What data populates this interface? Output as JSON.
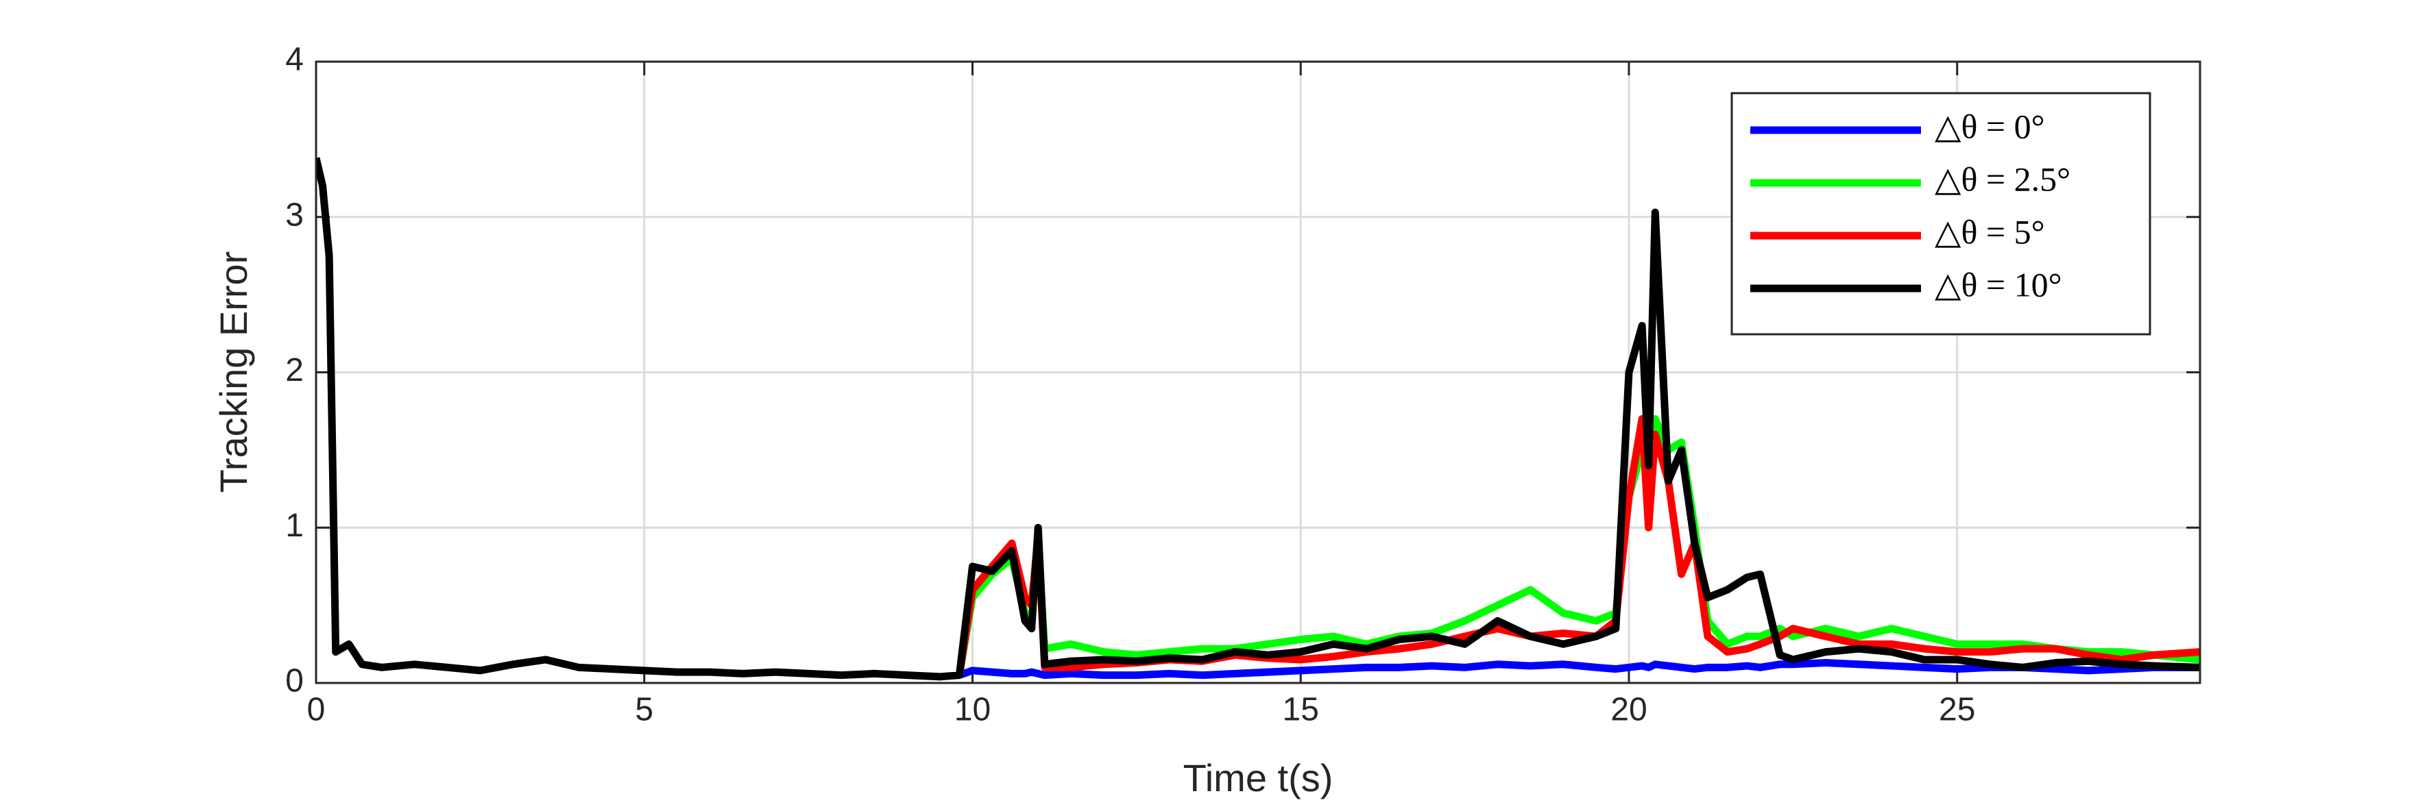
{
  "chart_data": {
    "type": "line",
    "x_label": "Time t(s)",
    "y_label": "Tracking Error",
    "x": [
      0,
      0.1,
      0.2,
      0.3,
      0.5,
      0.7,
      1,
      1.5,
      2,
      2.5,
      3,
      3.5,
      4,
      4.5,
      5,
      5.5,
      6,
      6.5,
      7,
      7.5,
      8,
      8.5,
      9,
      9.5,
      9.8,
      10,
      10.3,
      10.6,
      10.8,
      10.9,
      11,
      11.1,
      11.5,
      12,
      12.5,
      13,
      13.5,
      14,
      14.5,
      15,
      15.5,
      16,
      16.5,
      17,
      17.5,
      18,
      18.5,
      19,
      19.5,
      19.8,
      20,
      20.2,
      20.3,
      20.4,
      20.6,
      20.8,
      21,
      21.2,
      21.5,
      21.8,
      22,
      22.3,
      22.5,
      23,
      23.5,
      24,
      24.5,
      25,
      25.5,
      26,
      26.5,
      27,
      27.5,
      28,
      28.7
    ],
    "series": [
      {
        "name": "△θ = 0°",
        "color": "#0000ff",
        "values": [
          null,
          null,
          null,
          null,
          null,
          null,
          null,
          null,
          null,
          null,
          null,
          null,
          null,
          null,
          null,
          null,
          null,
          null,
          null,
          null,
          null,
          null,
          null,
          null,
          0.05,
          0.08,
          0.07,
          0.06,
          0.06,
          0.07,
          0.06,
          0.05,
          0.06,
          0.05,
          0.05,
          0.06,
          0.05,
          0.06,
          0.07,
          0.08,
          0.09,
          0.1,
          0.1,
          0.11,
          0.1,
          0.12,
          0.11,
          0.12,
          0.1,
          0.09,
          0.1,
          0.11,
          0.1,
          0.12,
          0.11,
          0.1,
          0.09,
          0.1,
          0.1,
          0.11,
          0.1,
          0.12,
          0.12,
          0.13,
          0.12,
          0.11,
          0.1,
          0.09,
          0.1,
          0.1,
          0.09,
          0.08,
          0.09,
          0.1,
          0.1
        ]
      },
      {
        "name": "△θ = 2.5°",
        "color": "#00ff00",
        "values": [
          null,
          null,
          null,
          null,
          null,
          null,
          null,
          null,
          null,
          null,
          null,
          null,
          null,
          null,
          null,
          null,
          null,
          null,
          null,
          null,
          null,
          null,
          null,
          null,
          0.05,
          0.55,
          0.7,
          0.8,
          0.45,
          0.4,
          0.9,
          0.22,
          0.25,
          0.2,
          0.18,
          0.2,
          0.22,
          0.22,
          0.25,
          0.28,
          0.3,
          0.25,
          0.3,
          0.32,
          0.4,
          0.5,
          0.6,
          0.45,
          0.4,
          0.45,
          1.2,
          1.5,
          1.3,
          1.7,
          1.5,
          1.55,
          1.0,
          0.4,
          0.25,
          0.3,
          0.3,
          0.35,
          0.3,
          0.35,
          0.3,
          0.35,
          0.3,
          0.25,
          0.25,
          0.25,
          0.22,
          0.2,
          0.2,
          0.18,
          0.15
        ]
      },
      {
        "name": "△θ = 5°",
        "color": "#ff0000",
        "values": [
          null,
          null,
          null,
          null,
          null,
          null,
          null,
          null,
          null,
          null,
          null,
          null,
          null,
          null,
          null,
          null,
          null,
          null,
          null,
          null,
          null,
          null,
          null,
          null,
          0.05,
          0.6,
          0.75,
          0.9,
          0.55,
          0.5,
          0.95,
          0.1,
          0.1,
          0.12,
          0.13,
          0.15,
          0.14,
          0.18,
          0.16,
          0.15,
          0.17,
          0.2,
          0.22,
          0.25,
          0.3,
          0.35,
          0.3,
          0.32,
          0.3,
          0.4,
          1.2,
          1.7,
          1.0,
          1.6,
          1.3,
          0.7,
          0.9,
          0.3,
          0.2,
          0.22,
          0.25,
          0.3,
          0.35,
          0.3,
          0.25,
          0.25,
          0.22,
          0.2,
          0.2,
          0.22,
          0.22,
          0.18,
          0.15,
          0.18,
          0.2
        ]
      },
      {
        "name": "△θ = 10°",
        "color": "#000000",
        "values": [
          3.38,
          3.2,
          2.75,
          0.2,
          0.25,
          0.12,
          0.1,
          0.12,
          0.1,
          0.08,
          0.12,
          0.15,
          0.1,
          0.09,
          0.08,
          0.07,
          0.07,
          0.06,
          0.07,
          0.06,
          0.05,
          0.06,
          0.05,
          0.04,
          0.05,
          0.75,
          0.72,
          0.85,
          0.4,
          0.35,
          1.0,
          0.12,
          0.14,
          0.15,
          0.14,
          0.16,
          0.15,
          0.2,
          0.18,
          0.2,
          0.25,
          0.22,
          0.28,
          0.3,
          0.25,
          0.4,
          0.3,
          0.25,
          0.3,
          0.35,
          2.0,
          2.3,
          1.4,
          3.03,
          1.3,
          1.5,
          0.9,
          0.55,
          0.6,
          0.68,
          0.7,
          0.18,
          0.15,
          0.2,
          0.22,
          0.2,
          0.15,
          0.15,
          0.12,
          0.1,
          0.13,
          0.14,
          0.12,
          0.11,
          0.1
        ]
      }
    ],
    "xlim": [
      0,
      28.7
    ],
    "xticks": [
      0,
      5,
      10,
      15,
      20,
      25
    ],
    "ylim": [
      0,
      4
    ],
    "yticks": [
      0,
      1,
      2,
      3,
      4
    ],
    "grid": true,
    "legend": "upper-right"
  }
}
